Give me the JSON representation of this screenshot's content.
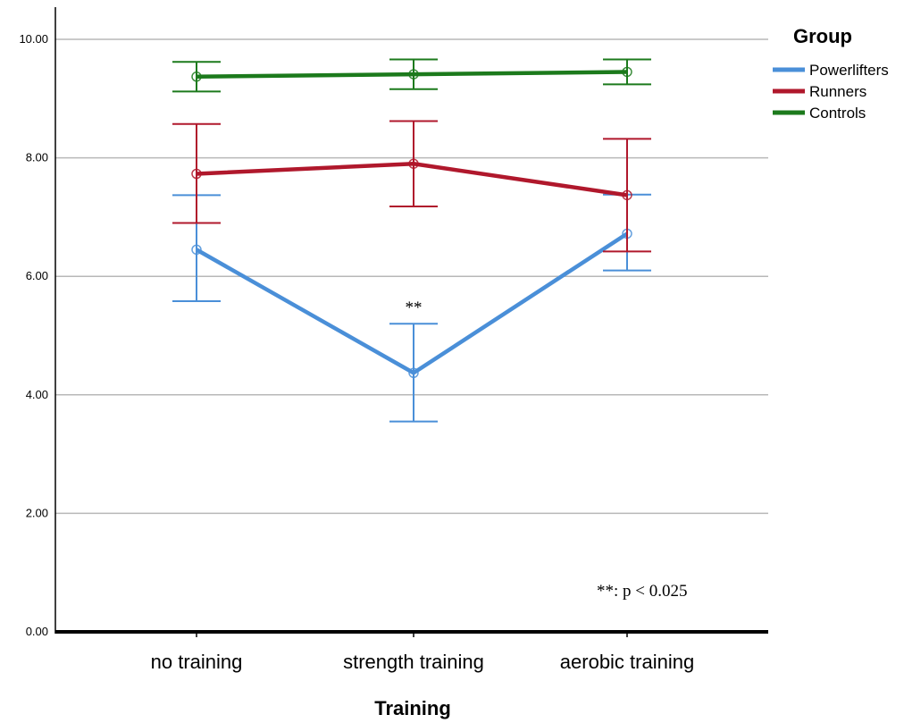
{
  "chart_data": {
    "type": "line",
    "title": "",
    "xlabel": "Training",
    "ylabel": "",
    "categories": [
      "no training",
      "strength training",
      "aerobic training"
    ],
    "ylim": [
      0,
      10
    ],
    "yticks": [
      "0.00",
      "2.00",
      "4.00",
      "6.00",
      "8.00",
      "10.00"
    ],
    "grid": true,
    "error_bars": true,
    "legend": {
      "title": "Group",
      "position": "right"
    },
    "series": [
      {
        "name": "Powerlifters",
        "color": "#4a8fd8",
        "values": [
          6.45,
          4.37,
          6.72
        ],
        "error_low": [
          5.58,
          3.55,
          6.1
        ],
        "error_high": [
          7.37,
          5.2,
          7.38
        ]
      },
      {
        "name": "Runners",
        "color": "#b0182c",
        "values": [
          7.73,
          7.9,
          7.37
        ],
        "error_low": [
          6.9,
          7.18,
          6.42
        ],
        "error_high": [
          8.57,
          8.62,
          8.32
        ]
      },
      {
        "name": "Controls",
        "color": "#1c7a1c",
        "values": [
          9.37,
          9.41,
          9.45
        ],
        "error_low": [
          9.12,
          9.16,
          9.24
        ],
        "error_high": [
          9.62,
          9.66,
          9.66
        ]
      }
    ],
    "annotations": [
      {
        "text": "**",
        "category": "strength training",
        "series": "Powerlifters"
      },
      {
        "text": "**: p < 0.025",
        "position": "bottom-right"
      }
    ]
  }
}
